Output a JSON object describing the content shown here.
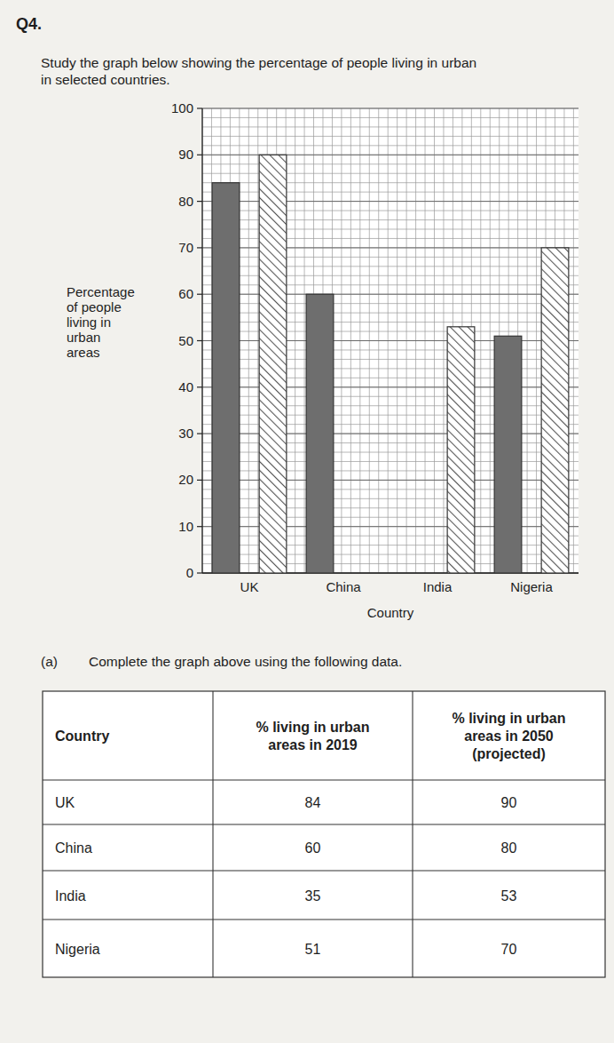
{
  "question": {
    "number": "Q4.",
    "text": [
      "Study the graph below showing the percentage of people living in urban",
      "in selected countries."
    ]
  },
  "chart_data": {
    "type": "bar",
    "categories": [
      "UK",
      "China",
      "India",
      "Nigeria"
    ],
    "series": [
      {
        "color": "#6e6e6e",
        "values": [
          84,
          60,
          null,
          51
        ]
      },
      {
        "color": "#ffffff",
        "values": [
          90,
          null,
          53,
          70
        ]
      }
    ],
    "xlabel": "Country",
    "ylabel": [
      "Percentage",
      "of people",
      "living in",
      "urban",
      "areas"
    ],
    "ylim": [
      0,
      100
    ],
    "yticks": [
      0,
      10,
      20,
      30,
      40,
      50,
      60,
      70,
      80,
      90,
      100
    ],
    "grid": true
  },
  "part_a": {
    "label": "(a)",
    "text": "Complete the graph above using the following data."
  },
  "table": {
    "header": [
      [
        "Country"
      ],
      [
        "% living in urban",
        "areas in 2019"
      ],
      [
        "% living in urban",
        "areas in 2050",
        "(projected)"
      ]
    ],
    "rows": [
      [
        "UK",
        84,
        90
      ],
      [
        "China",
        60,
        80
      ],
      [
        "India",
        35,
        53
      ],
      [
        "Nigeria",
        51,
        70
      ]
    ]
  }
}
